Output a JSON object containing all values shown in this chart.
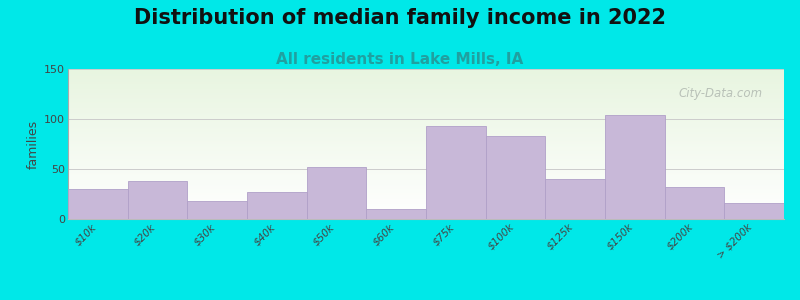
{
  "title": "Distribution of median family income in 2022",
  "subtitle": "All residents in Lake Mills, IA",
  "ylabel": "families",
  "categories": [
    "$10k",
    "$20k",
    "$30k",
    "$40k",
    "$50k",
    "$60k",
    "$75k",
    "$100k",
    "$125k",
    "$150k",
    "$200k",
    "> $200k"
  ],
  "values": [
    30,
    38,
    18,
    27,
    52,
    10,
    93,
    83,
    40,
    104,
    32,
    16
  ],
  "bar_color": "#c8b8d8",
  "bar_edge_color": "#b0a0c8",
  "background_outer": "#00e8e8",
  "background_inner_top": "#e8f5e0",
  "background_inner_bottom": "#ffffff",
  "title_fontsize": 15,
  "subtitle_fontsize": 11,
  "subtitle_color": "#20a0a0",
  "ylabel_fontsize": 9,
  "tick_fontsize": 7.5,
  "ylim": [
    0,
    150
  ],
  "yticks": [
    0,
    50,
    100,
    150
  ],
  "watermark_text": "City-Data.com",
  "watermark_color": "#b0b8b0"
}
